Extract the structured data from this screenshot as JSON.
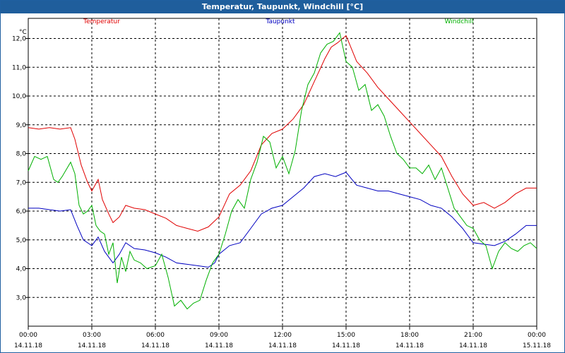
{
  "window": {
    "title": "Temperatur, Taupunkt, Windchill [°C]"
  },
  "chart_data": {
    "type": "line",
    "title": "Temperatur, Taupunkt, Windchill [°C]",
    "ylabel": "°C",
    "ylim": [
      2.0,
      12.7
    ],
    "yticks": [
      "12,0",
      "11,0",
      "10,0",
      "9,0",
      "8,0",
      "7,0",
      "6,0",
      "5,0",
      "4,0",
      "3,0"
    ],
    "ytick_values": [
      12,
      11,
      10,
      9,
      8,
      7,
      6,
      5,
      4,
      3
    ],
    "xlim": [
      0,
      24
    ],
    "xticks": [
      {
        "time": "00:00",
        "date": "14.11.18"
      },
      {
        "time": "03:00",
        "date": "14.11.18"
      },
      {
        "time": "06:00",
        "date": "14.11.18"
      },
      {
        "time": "09:00",
        "date": "14.11.18"
      },
      {
        "time": "12:00",
        "date": "14.11.18"
      },
      {
        "time": "15:00",
        "date": "14.11.18"
      },
      {
        "time": "18:00",
        "date": "14.11.18"
      },
      {
        "time": "21:00",
        "date": "14.11.18"
      },
      {
        "time": "00:00",
        "date": "15.11.18"
      }
    ],
    "grid": true,
    "legend_position": "top",
    "series": [
      {
        "name": "Temperatur",
        "color": "#e00000",
        "x": [
          0,
          0.5,
          1,
          1.5,
          2,
          2.2,
          2.5,
          2.8,
          3,
          3.3,
          3.5,
          3.8,
          4,
          4.3,
          4.6,
          5,
          5.5,
          6,
          6.5,
          7,
          7.5,
          8,
          8.5,
          9,
          9.5,
          10,
          10.5,
          11,
          11.5,
          12,
          12.5,
          13,
          13.5,
          14,
          14.3,
          14.6,
          15,
          15.5,
          16,
          16.5,
          17,
          17.5,
          18,
          18.5,
          19,
          19.5,
          20,
          20.5,
          21,
          21.5,
          22,
          22.5,
          23,
          23.5,
          24
        ],
        "values": [
          8.9,
          8.85,
          8.9,
          8.85,
          8.9,
          8.5,
          7.6,
          7.0,
          6.7,
          7.1,
          6.4,
          5.9,
          5.6,
          5.8,
          6.2,
          6.1,
          6.05,
          5.9,
          5.75,
          5.5,
          5.4,
          5.3,
          5.45,
          5.8,
          6.6,
          6.9,
          7.4,
          8.3,
          8.7,
          8.85,
          9.2,
          9.7,
          10.5,
          11.3,
          11.7,
          11.85,
          12.1,
          11.2,
          10.8,
          10.3,
          9.9,
          9.5,
          9.1,
          8.7,
          8.3,
          7.9,
          7.2,
          6.6,
          6.2,
          6.3,
          6.1,
          6.3,
          6.6,
          6.8,
          6.8
        ]
      },
      {
        "name": "Taupunkt",
        "color": "#0000c0",
        "x": [
          0,
          0.5,
          1,
          1.5,
          2,
          2.3,
          2.6,
          3,
          3.3,
          3.6,
          4,
          4.3,
          4.6,
          5,
          5.5,
          6,
          6.5,
          7,
          7.5,
          8,
          8.5,
          8.8,
          9,
          9.5,
          10,
          10.5,
          11,
          11.5,
          12,
          12.5,
          13,
          13.5,
          14,
          14.5,
          15,
          15.5,
          16,
          16.5,
          17,
          17.5,
          18,
          18.5,
          19,
          19.5,
          20,
          20.5,
          21,
          21.5,
          22,
          22.5,
          23,
          23.5,
          24
        ],
        "values": [
          6.1,
          6.1,
          6.05,
          6.0,
          6.05,
          5.5,
          5.0,
          4.8,
          5.1,
          4.6,
          4.2,
          4.5,
          4.9,
          4.7,
          4.65,
          4.55,
          4.4,
          4.2,
          4.15,
          4.1,
          4.05,
          4.2,
          4.5,
          4.8,
          4.9,
          5.4,
          5.9,
          6.1,
          6.2,
          6.5,
          6.8,
          7.2,
          7.3,
          7.2,
          7.35,
          6.9,
          6.8,
          6.7,
          6.7,
          6.6,
          6.5,
          6.4,
          6.2,
          6.1,
          5.8,
          5.4,
          4.9,
          4.85,
          4.8,
          4.95,
          5.2,
          5.5,
          5.5
        ]
      },
      {
        "name": "Windchill",
        "color": "#00b000",
        "x": [
          0,
          0.3,
          0.6,
          0.9,
          1.2,
          1.4,
          1.6,
          2.0,
          2.2,
          2.4,
          2.6,
          2.8,
          3.0,
          3.2,
          3.4,
          3.6,
          3.8,
          4.0,
          4.2,
          4.4,
          4.6,
          4.8,
          5.0,
          5.3,
          5.6,
          6.0,
          6.3,
          6.6,
          6.9,
          7.2,
          7.5,
          7.8,
          8.1,
          8.4,
          8.7,
          9.0,
          9.3,
          9.6,
          9.9,
          10.2,
          10.5,
          10.8,
          11.1,
          11.4,
          11.7,
          12.0,
          12.3,
          12.6,
          12.9,
          13.2,
          13.5,
          13.8,
          14.1,
          14.4,
          14.7,
          15.0,
          15.3,
          15.6,
          15.9,
          16.2,
          16.5,
          16.8,
          17.1,
          17.4,
          17.7,
          18.0,
          18.3,
          18.6,
          18.9,
          19.2,
          19.5,
          19.8,
          20.1,
          20.4,
          20.7,
          21.0,
          21.3,
          21.6,
          21.9,
          22.2,
          22.5,
          22.8,
          23.1,
          23.4,
          23.7,
          24.0
        ],
        "values": [
          7.4,
          7.9,
          7.8,
          7.9,
          7.1,
          7.0,
          7.2,
          7.7,
          7.3,
          6.2,
          5.9,
          6.0,
          6.2,
          5.5,
          5.3,
          5.2,
          4.5,
          4.9,
          3.5,
          4.4,
          3.9,
          4.6,
          4.3,
          4.2,
          4.0,
          4.1,
          4.5,
          3.7,
          2.7,
          2.9,
          2.6,
          2.8,
          2.9,
          3.6,
          4.2,
          4.5,
          5.2,
          6.0,
          6.4,
          6.1,
          7.1,
          7.7,
          8.6,
          8.4,
          7.5,
          7.9,
          7.3,
          8.1,
          9.5,
          10.4,
          10.8,
          11.5,
          11.8,
          11.9,
          12.2,
          11.2,
          11.0,
          10.2,
          10.4,
          9.5,
          9.7,
          9.3,
          8.6,
          8.0,
          7.8,
          7.5,
          7.5,
          7.3,
          7.6,
          7.1,
          7.5,
          6.8,
          6.1,
          5.8,
          5.5,
          5.4,
          5.0,
          4.8,
          4.0,
          4.6,
          4.9,
          4.7,
          4.6,
          4.8,
          4.9,
          4.7
        ]
      }
    ]
  }
}
